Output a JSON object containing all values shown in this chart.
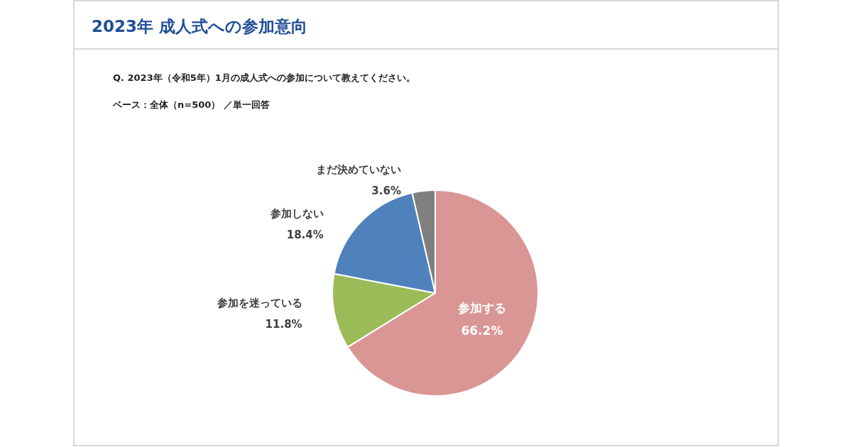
{
  "chart_data": {
    "type": "pie",
    "title": "2023年 成人式への参加意向",
    "subtitle": "Q. 2023年（令和5年）1月の成人式への参加について教えてください。",
    "annotations": [
      "ベース：全体（n=500） ／単一回答"
    ],
    "categories": [
      "参加する",
      "参加を迷っている",
      "参加しない",
      "まだ決めていない"
    ],
    "values": [
      66.2,
      11.8,
      18.4,
      3.6
    ],
    "colors": [
      "#d99694",
      "#9bbb59",
      "#4f81bd",
      "#7f7f7f"
    ],
    "value_labels": [
      "66.2%",
      "11.8%",
      "18.4%",
      "3.6%"
    ]
  }
}
